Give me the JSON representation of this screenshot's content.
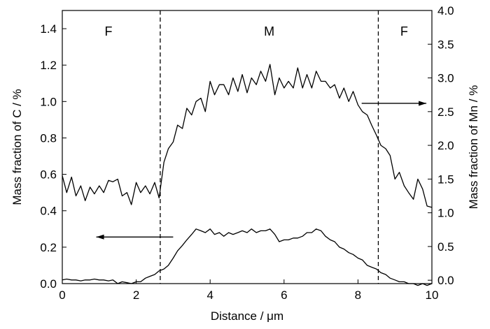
{
  "chart_data": {
    "type": "line",
    "xlabel": "Distance / μm",
    "ylabel_left": "Mass fraction of C / %",
    "ylabel_right": "Mass fraction of Mn / %",
    "xlim": [
      0,
      10
    ],
    "ylim_left": [
      0,
      1.5
    ],
    "ylim_right": [
      -0.05,
      4.0
    ],
    "x_ticks": [
      0,
      2,
      4,
      6,
      8,
      10
    ],
    "x_tick_labels": [
      "0",
      "2",
      "4",
      "6",
      "8",
      "10"
    ],
    "y_left_ticks": [
      0.0,
      0.2,
      0.4,
      0.6,
      0.8,
      1.0,
      1.2,
      1.4
    ],
    "y_left_tick_labels": [
      "0.0",
      "0.2",
      "0.4",
      "0.6",
      "0.8",
      "1.0",
      "1.2",
      "1.4"
    ],
    "y_right_ticks": [
      0.0,
      0.5,
      1.0,
      1.5,
      2.0,
      2.5,
      3.0,
      3.5,
      4.0
    ],
    "y_right_tick_labels": [
      "0.0",
      "0.5",
      "1.0",
      "1.5",
      "2.0",
      "2.5",
      "3.0",
      "3.5",
      "4.0"
    ],
    "grid": false,
    "boundaries": [
      2.65,
      8.55
    ],
    "regions": [
      {
        "label": "F",
        "x": 1.25
      },
      {
        "label": "M",
        "x": 5.6
      },
      {
        "label": "F",
        "x": 9.25
      }
    ],
    "arrows": [
      {
        "points_to": "left axis",
        "from": [
          3.0,
          0.256
        ],
        "to": [
          0.92,
          0.256
        ]
      },
      {
        "points_to": "right axis",
        "from": [
          8.1,
          0.99
        ],
        "to": [
          9.85,
          0.99
        ]
      }
    ],
    "series": [
      {
        "axis": "right",
        "color": "#000000",
        "x": [
          0.0,
          0.12,
          0.25,
          0.37,
          0.5,
          0.62,
          0.75,
          0.87,
          1.0,
          1.12,
          1.25,
          1.37,
          1.5,
          1.62,
          1.75,
          1.87,
          2.0,
          2.12,
          2.25,
          2.37,
          2.5,
          2.62,
          2.75,
          2.87,
          3.0,
          3.12,
          3.25,
          3.37,
          3.5,
          3.62,
          3.75,
          3.87,
          4.0,
          4.12,
          4.25,
          4.37,
          4.5,
          4.62,
          4.75,
          4.87,
          5.0,
          5.12,
          5.25,
          5.37,
          5.5,
          5.62,
          5.75,
          5.87,
          6.0,
          6.12,
          6.25,
          6.37,
          6.5,
          6.62,
          6.75,
          6.87,
          7.0,
          7.12,
          7.25,
          7.37,
          7.5,
          7.62,
          7.75,
          7.87,
          8.0,
          8.12,
          8.25,
          8.37,
          8.5,
          8.62,
          8.75,
          8.87,
          9.0,
          9.12,
          9.25,
          9.37,
          9.5,
          9.62,
          9.75,
          9.87,
          10.0
        ],
        "values": [
          1.55,
          1.3,
          1.53,
          1.25,
          1.4,
          1.18,
          1.38,
          1.28,
          1.4,
          1.3,
          1.48,
          1.46,
          1.5,
          1.25,
          1.3,
          1.12,
          1.45,
          1.3,
          1.4,
          1.28,
          1.45,
          1.22,
          1.75,
          1.95,
          2.05,
          2.3,
          2.25,
          2.55,
          2.45,
          2.65,
          2.7,
          2.5,
          2.95,
          2.75,
          2.9,
          2.9,
          2.75,
          3.0,
          2.8,
          3.05,
          2.78,
          3.0,
          2.9,
          3.1,
          2.95,
          3.2,
          2.75,
          3.0,
          2.85,
          2.95,
          2.85,
          3.15,
          2.85,
          3.05,
          2.85,
          3.1,
          2.95,
          2.95,
          2.85,
          2.9,
          2.7,
          2.85,
          2.65,
          2.8,
          2.6,
          2.5,
          2.45,
          2.3,
          2.15,
          2.0,
          1.95,
          1.85,
          1.5,
          1.6,
          1.4,
          1.3,
          1.2,
          1.5,
          1.35,
          1.1,
          1.08
        ]
      },
      {
        "axis": "left",
        "color": "#000000",
        "x": [
          0.0,
          0.12,
          0.25,
          0.37,
          0.5,
          0.62,
          0.75,
          0.87,
          1.0,
          1.12,
          1.25,
          1.37,
          1.5,
          1.62,
          1.75,
          1.87,
          2.0,
          2.12,
          2.25,
          2.37,
          2.5,
          2.62,
          2.75,
          2.87,
          3.0,
          3.12,
          3.25,
          3.37,
          3.5,
          3.62,
          3.75,
          3.87,
          4.0,
          4.12,
          4.25,
          4.37,
          4.5,
          4.62,
          4.75,
          4.87,
          5.0,
          5.12,
          5.25,
          5.37,
          5.5,
          5.62,
          5.75,
          5.87,
          6.0,
          6.12,
          6.25,
          6.37,
          6.5,
          6.62,
          6.75,
          6.87,
          7.0,
          7.12,
          7.25,
          7.37,
          7.5,
          7.62,
          7.75,
          7.87,
          8.0,
          8.12,
          8.25,
          8.37,
          8.5,
          8.62,
          8.75,
          8.87,
          9.0,
          9.12,
          9.25,
          9.37,
          9.5,
          9.62,
          9.75,
          9.87,
          10.0
        ],
        "values": [
          0.02,
          0.025,
          0.02,
          0.02,
          0.015,
          0.02,
          0.02,
          0.025,
          0.02,
          0.02,
          0.015,
          0.02,
          0.0,
          0.01,
          0.005,
          0.0,
          0.01,
          0.01,
          0.03,
          0.04,
          0.05,
          0.07,
          0.08,
          0.1,
          0.14,
          0.18,
          0.21,
          0.24,
          0.27,
          0.3,
          0.29,
          0.28,
          0.3,
          0.27,
          0.28,
          0.26,
          0.28,
          0.27,
          0.28,
          0.29,
          0.28,
          0.3,
          0.28,
          0.29,
          0.29,
          0.3,
          0.27,
          0.23,
          0.24,
          0.24,
          0.25,
          0.25,
          0.26,
          0.28,
          0.28,
          0.3,
          0.29,
          0.26,
          0.24,
          0.23,
          0.2,
          0.19,
          0.17,
          0.16,
          0.14,
          0.13,
          0.1,
          0.09,
          0.08,
          0.06,
          0.05,
          0.03,
          0.02,
          0.01,
          0.01,
          0.0,
          0.0,
          -0.01,
          0.0,
          -0.01,
          0.0
        ]
      }
    ]
  }
}
